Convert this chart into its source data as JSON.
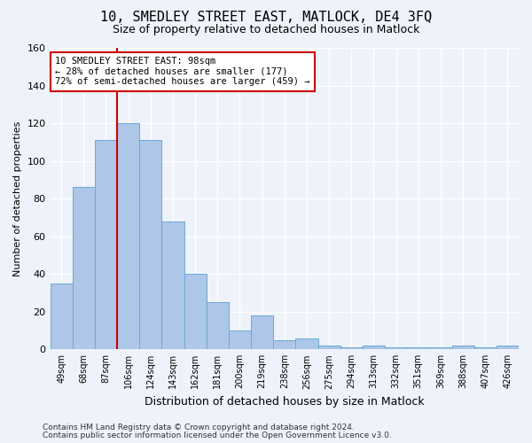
{
  "title_line1": "10, SMEDLEY STREET EAST, MATLOCK, DE4 3FQ",
  "title_line2": "Size of property relative to detached houses in Matlock",
  "xlabel": "Distribution of detached houses by size in Matlock",
  "ylabel": "Number of detached properties",
  "categories": [
    "49sqm",
    "68sqm",
    "87sqm",
    "106sqm",
    "124sqm",
    "143sqm",
    "162sqm",
    "181sqm",
    "200sqm",
    "219sqm",
    "238sqm",
    "256sqm",
    "275sqm",
    "294sqm",
    "313sqm",
    "332sqm",
    "351sqm",
    "369sqm",
    "388sqm",
    "407sqm",
    "426sqm"
  ],
  "values": [
    35,
    86,
    111,
    120,
    111,
    68,
    40,
    25,
    10,
    18,
    5,
    6,
    2,
    1,
    2,
    1,
    1,
    1,
    2,
    1,
    2
  ],
  "bar_color": "#aec6e8",
  "bar_edge_color": "#6aaad4",
  "vline_x": 2.5,
  "vline_color": "#cc0000",
  "ylim": [
    0,
    160
  ],
  "yticks": [
    0,
    20,
    40,
    60,
    80,
    100,
    120,
    140,
    160
  ],
  "annotation_text": "10 SMEDLEY STREET EAST: 98sqm\n← 28% of detached houses are smaller (177)\n72% of semi-detached houses are larger (459) →",
  "annotation_box_color": "#ffffff",
  "annotation_box_edge": "#cc0000",
  "footnote1": "Contains HM Land Registry data © Crown copyright and database right 2024.",
  "footnote2": "Contains public sector information licensed under the Open Government Licence v3.0.",
  "background_color": "#eef2fa",
  "grid_color": "#ffffff"
}
